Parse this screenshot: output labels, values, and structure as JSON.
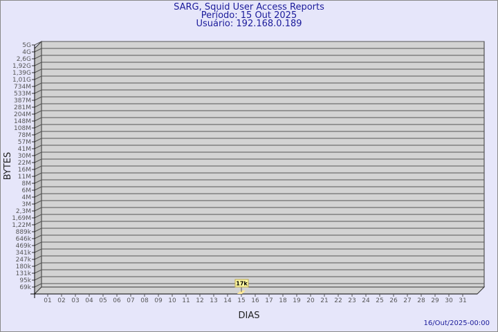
{
  "header": {
    "title": "SARG, Squid User Access Reports",
    "period": "Período: 15 Out 2025",
    "user": "Usuário: 192.168.0.189"
  },
  "footer": {
    "timestamp": "16/Out/2025-00:00"
  },
  "chart_data": {
    "type": "bar",
    "title": "SARG, Squid User Access Reports",
    "xlabel": "DIAS",
    "ylabel": "BYTES",
    "y_scale": "log",
    "y_ticks": [
      "5G",
      "4G",
      "2,6G",
      "1,92G",
      "1,39G",
      "1,01G",
      "734M",
      "533M",
      "387M",
      "281M",
      "204M",
      "148M",
      "108M",
      "78M",
      "57M",
      "41M",
      "30M",
      "22M",
      "16M",
      "11M",
      "8M",
      "6M",
      "4M",
      "3M",
      "2,3M",
      "1,69M",
      "1,22M",
      "889k",
      "646k",
      "469k",
      "341k",
      "247k",
      "180k",
      "131k",
      "95k",
      "69k"
    ],
    "categories": [
      "01",
      "02",
      "03",
      "04",
      "05",
      "06",
      "07",
      "08",
      "09",
      "10",
      "11",
      "12",
      "13",
      "14",
      "15",
      "16",
      "17",
      "18",
      "19",
      "20",
      "21",
      "22",
      "23",
      "24",
      "25",
      "26",
      "27",
      "28",
      "29",
      "30",
      "31"
    ],
    "bars": [
      {
        "day": "15",
        "value": 17000,
        "label": "17k"
      }
    ],
    "grid": true,
    "colors": {
      "plot": "#d3d3d3",
      "wall": "#c0c0c0",
      "bar": "#fde99a",
      "label_bg": "#fef8a0",
      "title": "#1a1a9a"
    }
  }
}
